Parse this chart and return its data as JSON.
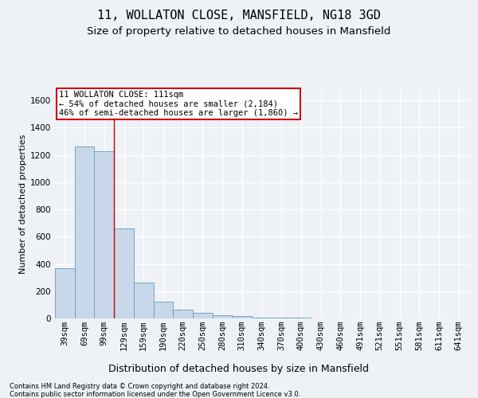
{
  "title1": "11, WOLLATON CLOSE, MANSFIELD, NG18 3GD",
  "title2": "Size of property relative to detached houses in Mansfield",
  "xlabel": "Distribution of detached houses by size in Mansfield",
  "ylabel": "Number of detached properties",
  "categories": [
    "39sqm",
    "69sqm",
    "99sqm",
    "129sqm",
    "159sqm",
    "190sqm",
    "220sqm",
    "250sqm",
    "280sqm",
    "310sqm",
    "340sqm",
    "370sqm",
    "400sqm",
    "430sqm",
    "460sqm",
    "491sqm",
    "521sqm",
    "551sqm",
    "581sqm",
    "611sqm",
    "641sqm"
  ],
  "values": [
    370,
    1265,
    1225,
    660,
    265,
    125,
    65,
    40,
    25,
    15,
    8,
    5,
    3,
    2,
    2,
    1,
    0,
    0,
    0,
    0,
    0
  ],
  "bar_color": "#c8d8ea",
  "bar_edge_color": "#6699bb",
  "red_line_x": 2.5,
  "annotation_line1": "11 WOLLATON CLOSE: 111sqm",
  "annotation_line2": "← 54% of detached houses are smaller (2,184)",
  "annotation_line3": "46% of semi-detached houses are larger (1,860) →",
  "annotation_box_color": "#ffffff",
  "annotation_box_edge": "#cc0000",
  "footnote1": "Contains HM Land Registry data © Crown copyright and database right 2024.",
  "footnote2": "Contains public sector information licensed under the Open Government Licence v3.0.",
  "ylim": [
    0,
    1680
  ],
  "yticks": [
    0,
    200,
    400,
    600,
    800,
    1000,
    1200,
    1400,
    1600
  ],
  "bg_color": "#eef2f7",
  "plot_bg_color": "#eef2f7",
  "grid_color": "#ffffff",
  "title1_fontsize": 11,
  "title2_fontsize": 9.5,
  "xlabel_fontsize": 9,
  "ylabel_fontsize": 8,
  "tick_fontsize": 7.5,
  "annot_fontsize": 7.5,
  "footnote_fontsize": 6
}
